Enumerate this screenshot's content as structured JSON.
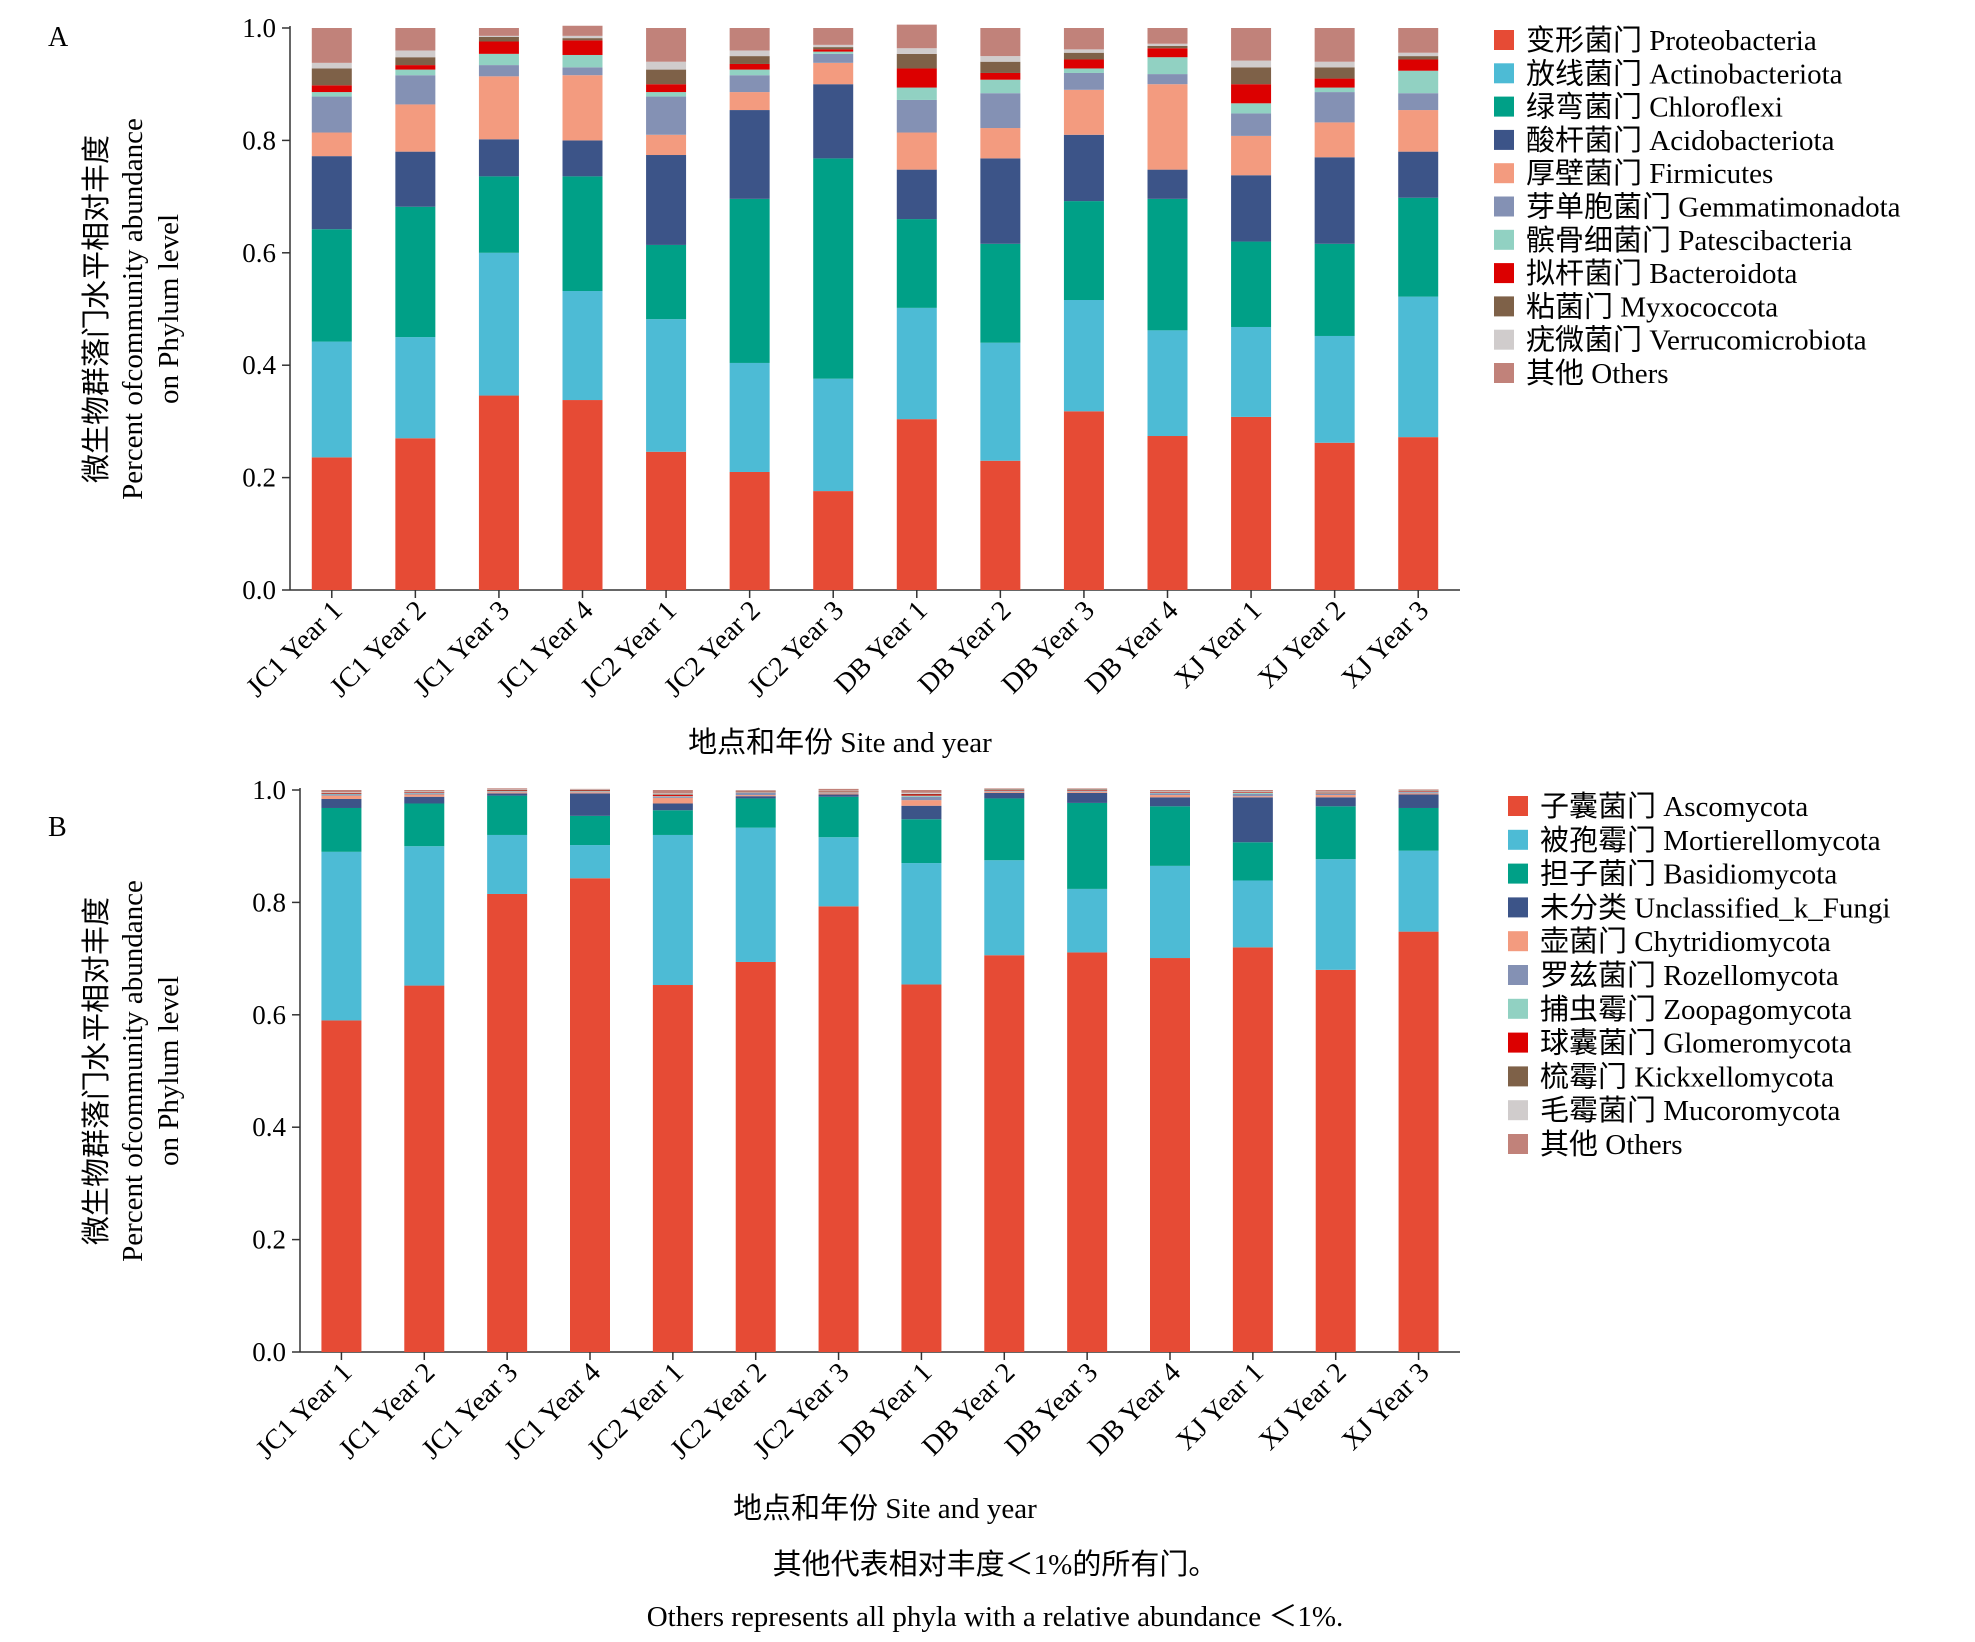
{
  "chart_data": [
    {
      "panel_label": "A",
      "type": "bar",
      "stacked": true,
      "ylabel_cn": "微生物群落门水平相对丰度",
      "ylabel_en1": "Percent ofcommunity abundance",
      "ylabel_en2": "on Phylum level",
      "xlabel": "地点和年份 Site and year",
      "ylim": [
        0,
        1
      ],
      "yticks": [
        "0.0",
        "0.2",
        "0.4",
        "0.6",
        "0.8",
        "1.0"
      ],
      "legend_placement": "right",
      "categories": [
        "JC1 Year 1",
        "JC1 Year 2",
        "JC1 Year 3",
        "JC1 Year 4",
        "JC2 Year 1",
        "JC2 Year 2",
        "JC2 Year 3",
        "DB Year 1",
        "DB Year 2",
        "DB Year 3",
        "DB Year 4",
        "XJ Year 1",
        "XJ Year 2",
        "XJ Year 3"
      ],
      "series": [
        {
          "name": "变形菌门 Proteobacteria",
          "color": "#e64b35",
          "values": [
            0.236,
            0.27,
            0.346,
            0.338,
            0.246,
            0.21,
            0.176,
            0.304,
            0.23,
            0.318,
            0.274,
            0.308,
            0.262,
            0.272
          ]
        },
        {
          "name": "放线菌门 Actinobacteriota",
          "color": "#4dbbd5",
          "values": [
            0.206,
            0.18,
            0.254,
            0.194,
            0.236,
            0.194,
            0.2,
            0.198,
            0.21,
            0.198,
            0.188,
            0.16,
            0.19,
            0.25
          ]
        },
        {
          "name": "绿弯菌门 Chloroflexi",
          "color": "#00a087",
          "values": [
            0.2,
            0.232,
            0.136,
            0.204,
            0.132,
            0.292,
            0.392,
            0.158,
            0.176,
            0.176,
            0.234,
            0.152,
            0.164,
            0.176
          ]
        },
        {
          "name": "酸杆菌门 Acidobacteriota",
          "color": "#3c5488",
          "values": [
            0.13,
            0.098,
            0.066,
            0.064,
            0.16,
            0.158,
            0.132,
            0.088,
            0.152,
            0.118,
            0.052,
            0.118,
            0.154,
            0.082
          ]
        },
        {
          "name": "厚壁菌门 Firmicutes",
          "color": "#f39b7f",
          "values": [
            0.042,
            0.084,
            0.112,
            0.116,
            0.036,
            0.032,
            0.038,
            0.066,
            0.054,
            0.08,
            0.152,
            0.07,
            0.062,
            0.074
          ]
        },
        {
          "name": "芽单胞菌门 Gemmatimonadota",
          "color": "#8491b4",
          "values": [
            0.064,
            0.052,
            0.02,
            0.014,
            0.068,
            0.03,
            0.016,
            0.058,
            0.062,
            0.03,
            0.018,
            0.04,
            0.054,
            0.03
          ]
        },
        {
          "name": "髌骨细菌门 Patescibacteria",
          "color": "#91d1c2",
          "values": [
            0.008,
            0.01,
            0.02,
            0.022,
            0.008,
            0.01,
            0.004,
            0.022,
            0.024,
            0.008,
            0.03,
            0.018,
            0.008,
            0.04
          ]
        },
        {
          "name": "拟杆菌门 Bacteroidota",
          "color": "#dc0000",
          "values": [
            0.012,
            0.008,
            0.022,
            0.026,
            0.014,
            0.01,
            0.004,
            0.034,
            0.012,
            0.016,
            0.016,
            0.034,
            0.016,
            0.02
          ]
        },
        {
          "name": "粘菌门 Myxococcota",
          "color": "#7e6148",
          "values": [
            0.03,
            0.014,
            0.008,
            0.004,
            0.026,
            0.014,
            0.004,
            0.026,
            0.02,
            0.012,
            0.004,
            0.03,
            0.02,
            0.006
          ]
        },
        {
          "name": "疣微菌门 Verrucomicrobiota",
          "color": "#d0cccc",
          "values": [
            0.01,
            0.012,
            0.002,
            0.004,
            0.014,
            0.01,
            0.004,
            0.01,
            0.01,
            0.006,
            0.004,
            0.012,
            0.01,
            0.006
          ]
        },
        {
          "name": "其他 Others",
          "color": "#c1827a",
          "values": [
            0.062,
            0.04,
            0.014,
            0.018,
            0.06,
            0.04,
            0.03,
            0.042,
            0.05,
            0.038,
            0.028,
            0.058,
            0.06,
            0.044
          ]
        }
      ]
    },
    {
      "panel_label": "B",
      "type": "bar",
      "stacked": true,
      "ylabel_cn": "微生物群落门水平相对丰度",
      "ylabel_en1": "Percent ofcommunity abundance",
      "ylabel_en2": "on Phylum level",
      "xlabel": "地点和年份 Site and year",
      "ylim": [
        0,
        1
      ],
      "yticks": [
        "0.0",
        "0.2",
        "0.4",
        "0.6",
        "0.8",
        "1.0"
      ],
      "legend_placement": "right",
      "categories": [
        "JC1 Year 1",
        "JC1 Year 2",
        "JC1 Year 3",
        "JC1 Year 4",
        "JC2 Year 1",
        "JC2 Year 2",
        "JC2 Year 3",
        "DB Year 1",
        "DB Year 2",
        "DB Year 3",
        "DB Year 4",
        "XJ Year 1",
        "XJ Year 2",
        "XJ Year 3"
      ],
      "series": [
        {
          "name": "子囊菌门 Ascomycota",
          "color": "#e64b35",
          "values": [
            0.59,
            0.652,
            0.815,
            0.843,
            0.653,
            0.694,
            0.793,
            0.654,
            0.706,
            0.711,
            0.701,
            0.72,
            0.68,
            0.748
          ]
        },
        {
          "name": "被孢霉门 Mortierellomycota",
          "color": "#4dbbd5",
          "values": [
            0.3,
            0.248,
            0.105,
            0.059,
            0.267,
            0.239,
            0.123,
            0.216,
            0.169,
            0.113,
            0.164,
            0.119,
            0.197,
            0.144
          ]
        },
        {
          "name": "担子菌门 Basidiomycota",
          "color": "#00a087",
          "values": [
            0.078,
            0.076,
            0.07,
            0.052,
            0.044,
            0.052,
            0.072,
            0.078,
            0.11,
            0.153,
            0.106,
            0.068,
            0.094,
            0.076
          ]
        },
        {
          "name": "未分类 Unclassified_k_Fungi",
          "color": "#3c5488",
          "values": [
            0.016,
            0.012,
            0.004,
            0.04,
            0.012,
            0.004,
            0.004,
            0.024,
            0.01,
            0.018,
            0.016,
            0.08,
            0.016,
            0.024
          ]
        },
        {
          "name": "壶菌门 Chytridiomycota",
          "color": "#f39b7f",
          "values": [
            0.006,
            0.004,
            0.002,
            0.002,
            0.01,
            0.002,
            0.002,
            0.01,
            0.002,
            0.002,
            0.004,
            0.002,
            0.004,
            0.002
          ]
        },
        {
          "name": "罗兹菌门 Rozellomycota",
          "color": "#8491b4",
          "values": [
            0.002,
            0.002,
            0.001,
            0.001,
            0.002,
            0.004,
            0.001,
            0.006,
            0.001,
            0.001,
            0.003,
            0.004,
            0.002,
            0.002
          ]
        },
        {
          "name": "捕虫霉门 Zoopagomycota",
          "color": "#91d1c2",
          "values": [
            0.001,
            0.001,
            0.001,
            0.001,
            0.001,
            0.001,
            0.001,
            0.002,
            0.001,
            0.001,
            0.001,
            0.002,
            0.001,
            0.001
          ]
        },
        {
          "name": "球囊菌门 Glomeromycota",
          "color": "#dc0000",
          "values": [
            0.001,
            0.001,
            0.001,
            0.001,
            0.002,
            0.001,
            0.001,
            0.002,
            0.001,
            0.001,
            0.001,
            0.001,
            0.001,
            0.001
          ]
        },
        {
          "name": "梳霉门 Kickxellomycota",
          "color": "#7e6148",
          "values": [
            0.001,
            0.001,
            0.001,
            0.001,
            0.001,
            0.001,
            0.001,
            0.001,
            0.001,
            0.001,
            0.001,
            0.001,
            0.001,
            0.001
          ]
        },
        {
          "name": "毛霉菌门 Mucoromycota",
          "color": "#d0cccc",
          "values": [
            0.001,
            0.001,
            0.001,
            0.001,
            0.002,
            0.001,
            0.001,
            0.002,
            0.001,
            0.001,
            0.001,
            0.001,
            0.001,
            0.001
          ]
        },
        {
          "name": "其他 Others",
          "color": "#c1827a",
          "values": [
            0.004,
            0.002,
            0.002,
            0.001,
            0.006,
            0.001,
            0.003,
            0.005,
            0.001,
            0.001,
            0.002,
            0.002,
            0.003,
            0.001
          ]
        }
      ]
    }
  ],
  "footnote_cn": "其他代表相对丰度＜1%的所有门。",
  "footnote_en": "Others represents all phyla with a relative abundance ＜1%."
}
